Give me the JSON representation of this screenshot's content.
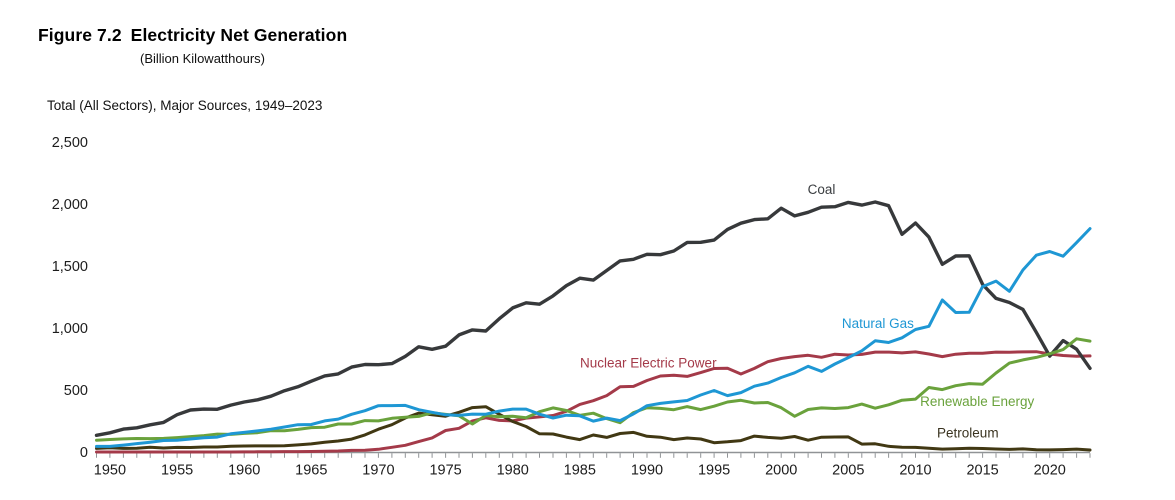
{
  "figure": {
    "label": "Figure 7.2",
    "title": "Electricity Net Generation",
    "units": "(Billion Kilowatthours)",
    "caption": "Total (All Sectors), Major Sources, 1949–2023"
  },
  "colors": {
    "coal": "#37393b",
    "natural_gas": "#1e97d4",
    "nuclear": "#a43a49",
    "renewable": "#6aa23c",
    "petroleum": "#413813",
    "axis": "#909396",
    "tick_text": "#1c1c1c"
  },
  "chart_data": {
    "type": "line",
    "title": "Electricity Net Generation",
    "subtitle": "Total (All Sectors), Major Sources, 1949–2023",
    "ylabel": "Billion Kilowatthours",
    "xlabel": "",
    "ylim": [
      0,
      2500
    ],
    "xlim": [
      1949,
      2023
    ],
    "grid": false,
    "legend": "direct-line-labels",
    "years": [
      1949,
      1950,
      1951,
      1952,
      1953,
      1954,
      1955,
      1956,
      1957,
      1958,
      1959,
      1960,
      1961,
      1962,
      1963,
      1964,
      1965,
      1966,
      1967,
      1968,
      1969,
      1970,
      1971,
      1972,
      1973,
      1974,
      1975,
      1976,
      1977,
      1978,
      1979,
      1980,
      1981,
      1982,
      1983,
      1984,
      1985,
      1986,
      1987,
      1988,
      1989,
      1990,
      1991,
      1992,
      1993,
      1994,
      1995,
      1996,
      1997,
      1998,
      1999,
      2000,
      2001,
      2002,
      2003,
      2004,
      2005,
      2006,
      2007,
      2008,
      2009,
      2010,
      2011,
      2012,
      2013,
      2014,
      2015,
      2016,
      2017,
      2018,
      2019,
      2020,
      2021,
      2022,
      2023
    ],
    "y_ticks": [
      {
        "value": 0,
        "label": "0"
      },
      {
        "value": 500,
        "label": "500"
      },
      {
        "value": 1000,
        "label": "1,000"
      },
      {
        "value": 1500,
        "label": "1,500"
      },
      {
        "value": 2000,
        "label": "2,000"
      },
      {
        "value": 2500,
        "label": "2,500"
      }
    ],
    "x_tick_label_years": [
      1950,
      1955,
      1960,
      1965,
      1970,
      1975,
      1980,
      1985,
      1990,
      1995,
      2000,
      2005,
      2010,
      2015,
      2020
    ],
    "series": [
      {
        "name": "Nuclear Electric Power",
        "slug": "nuclear-electric-power",
        "color": "#a43a49",
        "line_width": 3,
        "values": [
          0,
          0,
          0,
          0,
          0,
          0,
          0,
          0,
          0,
          0,
          0,
          1,
          2,
          2,
          3,
          3,
          4,
          6,
          8,
          13,
          14,
          22,
          38,
          54,
          84,
          114,
          173,
          191,
          251,
          276,
          255,
          251,
          273,
          283,
          294,
          328,
          384,
          414,
          455,
          527,
          529,
          577,
          613,
          619,
          610,
          640,
          673,
          675,
          629,
          674,
          728,
          754,
          769,
          780,
          764,
          789,
          782,
          787,
          806,
          806,
          799,
          807,
          790,
          769,
          789,
          797,
          797,
          806,
          805,
          807,
          809,
          790,
          778,
          772,
          775
        ]
      },
      {
        "name": "Petroleum",
        "slug": "petroleum",
        "color": "#413813",
        "line_width": 3,
        "values": [
          29,
          34,
          29,
          30,
          39,
          32,
          37,
          36,
          40,
          40,
          47,
          48,
          49,
          49,
          51,
          57,
          65,
          79,
          89,
          104,
          138,
          184,
          220,
          274,
          314,
          301,
          289,
          320,
          358,
          365,
          304,
          246,
          206,
          147,
          145,
          120,
          100,
          137,
          118,
          149,
          158,
          127,
          119,
          100,
          113,
          105,
          75,
          82,
          92,
          128,
          118,
          111,
          125,
          95,
          119,
          121,
          122,
          64,
          66,
          46,
          39,
          37,
          30,
          23,
          27,
          30,
          28,
          24,
          21,
          25,
          18,
          17,
          19,
          23,
          16
        ]
      },
      {
        "name": "Coal",
        "slug": "coal",
        "color": "#37393b",
        "line_width": 3.4,
        "values": [
          135,
          155,
          185,
          195,
          219,
          239,
          301,
          339,
          346,
          344,
          378,
          403,
          421,
          450,
          494,
          526,
          571,
          614,
          630,
          685,
          706,
          704,
          713,
          771,
          848,
          828,
          853,
          944,
          985,
          976,
          1075,
          1162,
          1203,
          1192,
          1259,
          1342,
          1402,
          1386,
          1464,
          1541,
          1554,
          1594,
          1591,
          1621,
          1690,
          1691,
          1709,
          1795,
          1845,
          1874,
          1881,
          1966,
          1904,
          1933,
          1974,
          1978,
          2013,
          1991,
          2016,
          1986,
          1756,
          1847,
          1733,
          1514,
          1581,
          1582,
          1352,
          1239,
          1206,
          1150,
          965,
          773,
          898,
          829,
          675
        ]
      },
      {
        "name": "Renewable Energy",
        "slug": "renewable-energy",
        "color": "#6aa23c",
        "line_width": 3,
        "values": [
          95,
          101,
          106,
          109,
          108,
          110,
          116,
          124,
          132,
          144,
          142,
          150,
          156,
          172,
          172,
          182,
          197,
          200,
          226,
          226,
          253,
          251,
          272,
          280,
          287,
          317,
          303,
          292,
          226,
          294,
          285,
          289,
          276,
          325,
          356,
          335,
          296,
          313,
          269,
          236,
          318,
          357,
          352,
          341,
          366,
          342,
          369,
          403,
          417,
          395,
          399,
          357,
          288,
          343,
          356,
          351,
          358,
          386,
          353,
          381,
          418,
          427,
          520,
          503,
          535,
          552,
          547,
          637,
          717,
          743,
          763,
          792,
          826,
          913,
          894
        ]
      },
      {
        "name": "Natural Gas",
        "slug": "natural-gas",
        "color": "#1e97d4",
        "line_width": 3,
        "values": [
          45,
          45,
          56,
          68,
          79,
          93,
          95,
          105,
          115,
          120,
          147,
          158,
          170,
          184,
          202,
          220,
          222,
          251,
          265,
          304,
          333,
          373,
          374,
          376,
          341,
          320,
          300,
          295,
          306,
          305,
          330,
          346,
          346,
          305,
          274,
          297,
          292,
          249,
          273,
          253,
          307,
          373,
          392,
          404,
          415,
          460,
          496,
          455,
          479,
          531,
          556,
          601,
          639,
          691,
          650,
          710,
          761,
          816,
          897,
          883,
          921,
          988,
          1014,
          1226,
          1125,
          1127,
          1334,
          1378,
          1296,
          1468,
          1587,
          1617,
          1579,
          1689,
          1802
        ]
      }
    ],
    "labels": [
      {
        "text": "Coal",
        "slug": "coal",
        "year": 2003,
        "value": 2115,
        "color": "#3a3d40"
      },
      {
        "text": "Natural Gas",
        "slug": "natural-gas",
        "year": 2007.2,
        "value": 1035,
        "color": "#1e97d4"
      },
      {
        "text": "Nuclear Electric Power",
        "slug": "nuclear-electric-power",
        "year": 1990.1,
        "value": 718,
        "color": "#a43a49"
      },
      {
        "text": "Renewable Energy",
        "slug": "renewable-energy",
        "year": 2014.6,
        "value": 408,
        "color": "#6aa23c"
      },
      {
        "text": "Petroleum",
        "slug": "petroleum",
        "year": 2013.9,
        "value": 152,
        "color": "#3a3320"
      }
    ]
  }
}
